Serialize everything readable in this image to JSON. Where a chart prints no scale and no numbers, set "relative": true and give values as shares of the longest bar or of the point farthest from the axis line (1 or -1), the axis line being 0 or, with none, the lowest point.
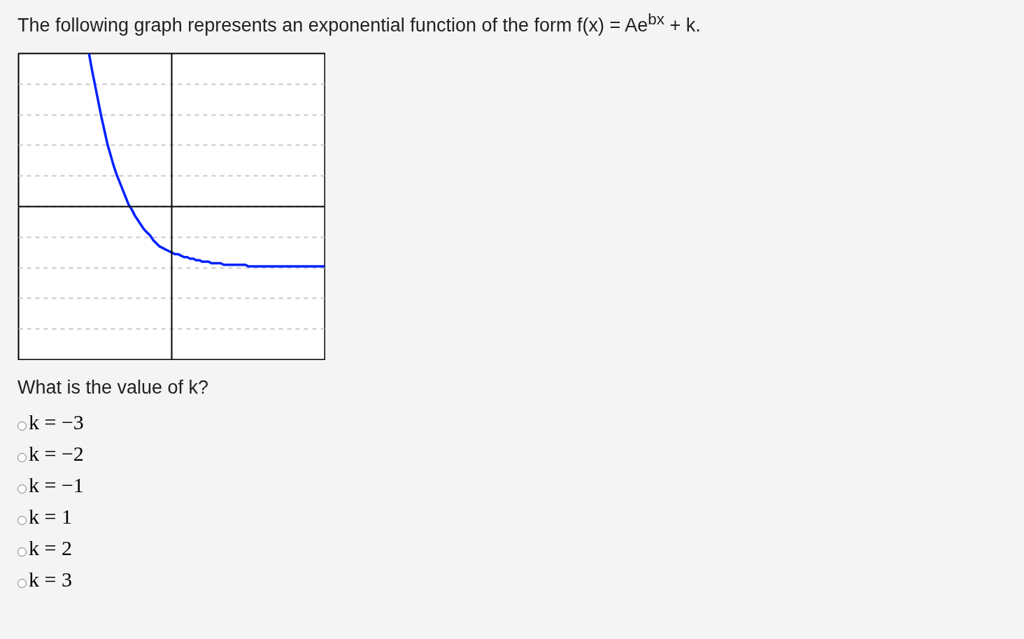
{
  "chart_data": {
    "type": "line",
    "title": "The following graph represents an exponential function of the form f(x) = Ae$^{bx}$ + k.",
    "relative": true,
    "categories": [
      null,
      null,
      null,
      null,
      null,
      null,
      null,
      null,
      null,
      null,
      null,
      null,
      null,
      null,
      null,
      null,
      null,
      null,
      null,
      null,
      null,
      null,
      null,
      null,
      null,
      null,
      null,
      null,
      null,
      null,
      null,
      null,
      null,
      null,
      null,
      null,
      null,
      null,
      null,
      null,
      null,
      null,
      null,
      null,
      null,
      null,
      null,
      null,
      null,
      null,
      null,
      null,
      null,
      null,
      null,
      null,
      null,
      null,
      null,
      null,
      null,
      null,
      null,
      null,
      null,
      null,
      null,
      null,
      null,
      null,
      null,
      null,
      null,
      null,
      null,
      null,
      null,
      null,
      null,
      null,
      null,
      null,
      null,
      null,
      null,
      null,
      null,
      null,
      null,
      null,
      null,
      null,
      null,
      null,
      null,
      null,
      null,
      null,
      null,
      null,
      null
    ],
    "series": [
      {
        "color": "#0022ff",
        "values": [
          null,
          null,
          null,
          null,
          null,
          null,
          null,
          null,
          null,
          null,
          null,
          null,
          null,
          null,
          null,
          null,
          null,
          null,
          null,
          null,
          null,
          null,
          null,
          1.0,
          0.89,
          0.79,
          0.69,
          0.59,
          0.5,
          0.41,
          0.34,
          0.27,
          0.21,
          0.16,
          0.11,
          0.06,
          0.01,
          -0.02,
          -0.06,
          -0.09,
          -0.12,
          -0.15,
          -0.17,
          -0.19,
          -0.22,
          -0.24,
          -0.26,
          -0.27,
          -0.28,
          -0.29,
          -0.3,
          -0.31,
          -0.31,
          -0.32,
          -0.33,
          -0.33,
          -0.34,
          -0.34,
          -0.35,
          -0.35,
          -0.36,
          -0.36,
          -0.36,
          -0.37,
          -0.37,
          -0.37,
          -0.37,
          -0.38,
          -0.38,
          -0.38,
          -0.38,
          -0.38,
          -0.38,
          -0.38,
          -0.38,
          -0.39,
          -0.39,
          -0.39,
          -0.39,
          -0.39,
          -0.39,
          -0.39,
          -0.39,
          -0.39,
          -0.39,
          -0.39,
          -0.39,
          -0.39,
          -0.39,
          -0.39,
          -0.39,
          -0.39,
          -0.39,
          -0.39,
          -0.39,
          -0.39,
          -0.39,
          -0.39,
          -0.39,
          -0.39,
          -0.39
        ]
      }
    ],
    "grid": "y",
    "line_style": "solid",
    "annotations": [
      "What is the value of k?",
      "k = −3",
      "k = −2",
      "k = −1",
      "k = 1",
      "k = 2",
      "k = 3"
    ]
  }
}
